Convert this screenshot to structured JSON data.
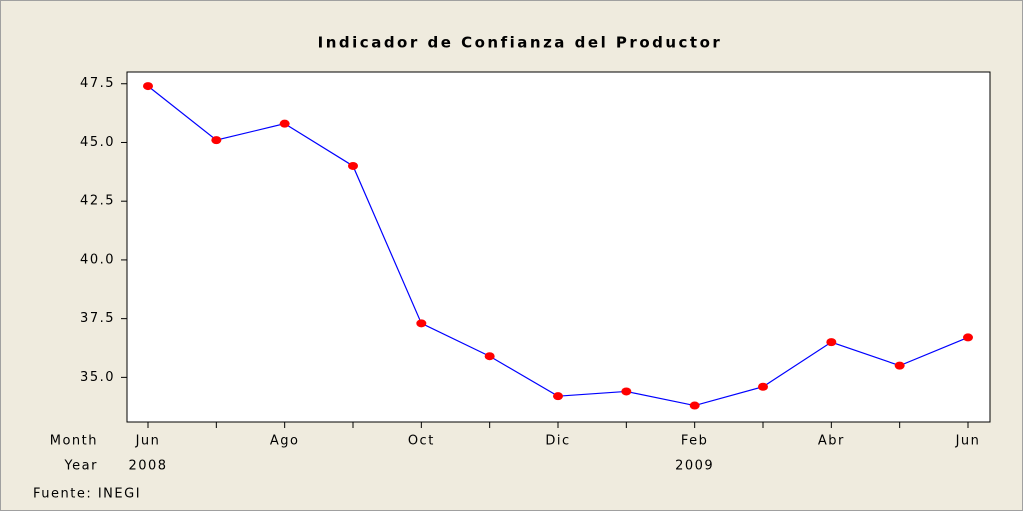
{
  "chart_data": {
    "type": "line",
    "title": "Indicador de Confianza del Productor",
    "categories": [
      "Jun",
      null,
      "Ago",
      null,
      "Oct",
      null,
      "Dic",
      null,
      "Feb",
      null,
      "Abr",
      null,
      "Jun"
    ],
    "years": [
      "2008",
      null,
      null,
      null,
      null,
      null,
      null,
      null,
      "2009",
      null,
      null,
      null,
      null
    ],
    "month_label": "Month",
    "year_label": "Year",
    "source": "Fuente: INEGI",
    "series": [
      {
        "name": "Indicador de Confianza del Productor",
        "color": "#0000ff",
        "marker_color": "#ff0000",
        "values": [
          47.4,
          45.1,
          45.8,
          44.0,
          37.3,
          35.9,
          34.2,
          34.4,
          33.8,
          34.6,
          36.5,
          35.5,
          36.7
        ]
      }
    ],
    "ylim": [
      33.1,
      48.0
    ],
    "yticks": [
      {
        "value": 35,
        "label": "35.0"
      },
      37.5,
      {
        "value": 40,
        "label": "40.0"
      },
      42.5,
      {
        "value": 45,
        "label": "45.0"
      },
      47.5
    ],
    "grid": false
  }
}
